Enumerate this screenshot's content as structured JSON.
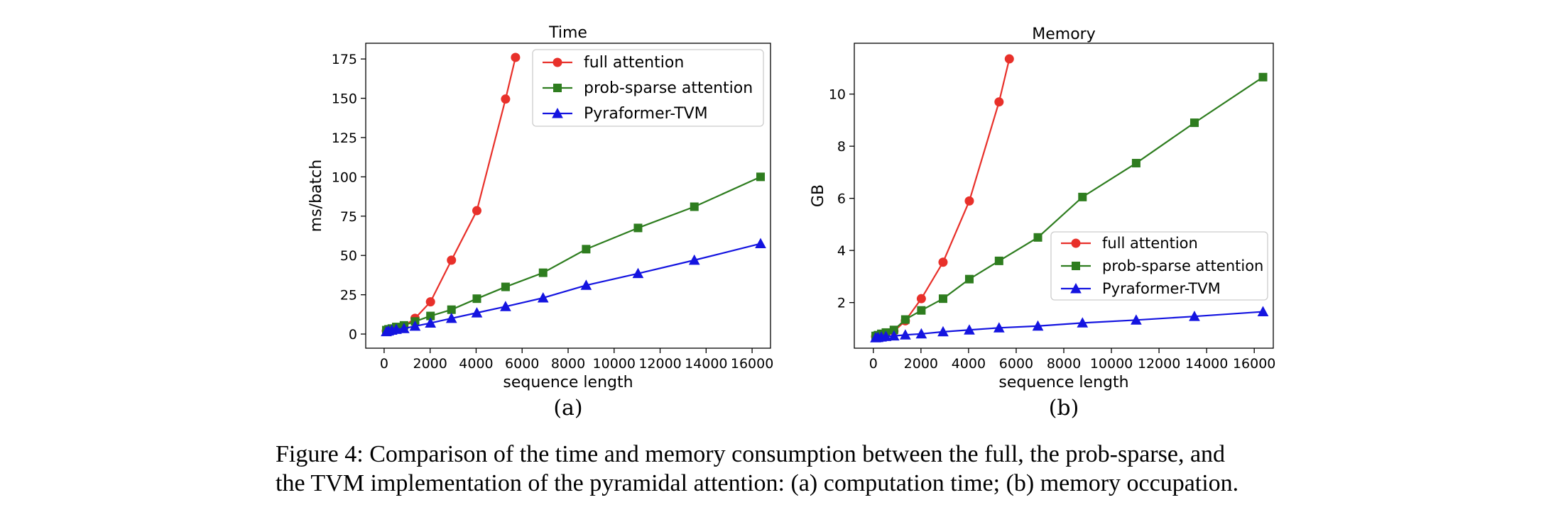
{
  "chart_data": [
    {
      "type": "line",
      "title": "Time",
      "xlabel": "sequence length",
      "ylabel": "ms/batch",
      "panel_label": "(a)",
      "xlim": [
        -800,
        16800
      ],
      "ylim": [
        -9,
        185
      ],
      "xticks": [
        0,
        2000,
        4000,
        6000,
        8000,
        10000,
        12000,
        14000,
        16000
      ],
      "yticks": [
        0,
        25,
        50,
        75,
        100,
        125,
        150,
        175
      ],
      "grid": false,
      "legend": "top-right",
      "series": [
        {
          "name": "full attention",
          "color": "#e8302a",
          "marker": "circle",
          "x": [
            96,
            192,
            336,
            528,
            864,
            1344,
            2016,
            2928,
            4032,
            5280,
            5712
          ],
          "y": [
            2,
            2.5,
            3,
            3.5,
            5,
            10,
            20.5,
            47,
            78.5,
            149.5,
            176
          ]
        },
        {
          "name": "prob-sparse attention",
          "color": "#2e7d1f",
          "marker": "square",
          "x": [
            96,
            192,
            336,
            528,
            864,
            1344,
            2016,
            2928,
            4032,
            5280,
            6912,
            8784,
            11040,
            13488,
            16368
          ],
          "y": [
            2.5,
            3,
            3.5,
            4.5,
            5.5,
            8,
            11.5,
            15.5,
            22.5,
            30,
            39,
            54,
            67.5,
            81,
            100
          ]
        },
        {
          "name": "Pyraformer-TVM",
          "color": "#1414e0",
          "marker": "triangle",
          "x": [
            96,
            192,
            336,
            528,
            864,
            1344,
            2016,
            2928,
            4032,
            5280,
            6912,
            8784,
            11040,
            13488,
            16368
          ],
          "y": [
            1.5,
            2,
            2.5,
            3,
            3.5,
            5,
            7,
            10,
            13.5,
            17.5,
            23,
            31,
            38.5,
            47,
            57.5
          ]
        }
      ]
    },
    {
      "type": "line",
      "title": "Memory",
      "xlabel": "sequence length",
      "ylabel": "GB",
      "panel_label": "(b)",
      "xlim": [
        -800,
        16800
      ],
      "ylim": [
        0.25,
        11.95
      ],
      "xticks": [
        0,
        2000,
        4000,
        6000,
        8000,
        10000,
        12000,
        14000,
        16000
      ],
      "yticks": [
        2,
        4,
        6,
        8,
        10
      ],
      "grid": false,
      "legend": "center-right",
      "series": [
        {
          "name": "full attention",
          "color": "#e8302a",
          "marker": "circle",
          "x": [
            96,
            192,
            336,
            528,
            864,
            1344,
            2016,
            2928,
            4032,
            5280,
            5712
          ],
          "y": [
            0.7,
            0.72,
            0.75,
            0.8,
            0.9,
            1.3,
            2.15,
            3.55,
            5.9,
            9.7,
            11.35
          ]
        },
        {
          "name": "prob-sparse attention",
          "color": "#2e7d1f",
          "marker": "square",
          "x": [
            96,
            192,
            336,
            528,
            864,
            1344,
            2016,
            2928,
            4032,
            5280,
            6912,
            8784,
            11040,
            13488,
            16368
          ],
          "y": [
            0.72,
            0.75,
            0.8,
            0.85,
            0.95,
            1.35,
            1.7,
            2.15,
            2.9,
            3.6,
            4.5,
            6.05,
            7.35,
            8.9,
            10.65
          ]
        },
        {
          "name": "Pyraformer-TVM",
          "color": "#1414e0",
          "marker": "triangle",
          "x": [
            96,
            192,
            336,
            528,
            864,
            1344,
            2016,
            2928,
            4032,
            5280,
            6912,
            8784,
            11040,
            13488,
            16368
          ],
          "y": [
            0.65,
            0.66,
            0.68,
            0.7,
            0.72,
            0.76,
            0.8,
            0.88,
            0.95,
            1.03,
            1.1,
            1.22,
            1.33,
            1.47,
            1.65
          ]
        }
      ]
    }
  ],
  "caption": {
    "line1": "Figure 4: Comparison of the time and memory consumption between the full, the prob-sparse, and",
    "line2": "the TVM implementation of the pyramidal attention: (a) computation time; (b) memory occupation."
  }
}
